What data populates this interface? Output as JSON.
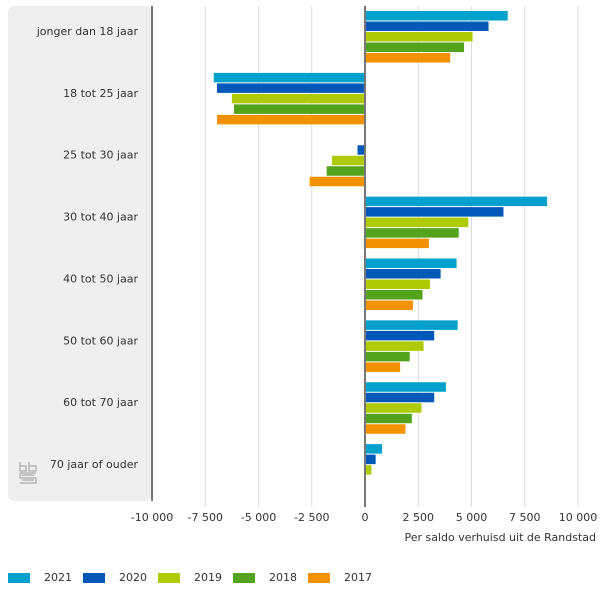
{
  "chart_data": {
    "type": "bar",
    "orientation": "horizontal",
    "title": "",
    "xlabel": "Per saldo verhuisd uit de Randstad",
    "ylabel": "",
    "xlim": [
      -10000,
      10000
    ],
    "xticks": [
      -10000,
      -7500,
      -5000,
      -2500,
      0,
      2500,
      5000,
      7500,
      10000
    ],
    "xtick_labels": [
      "-10 000",
      "-7 500",
      "-5 000",
      "-2 500",
      "0",
      "2 500",
      "5 000",
      "7 500",
      "10 000"
    ],
    "grid": true,
    "legend_position": "bottom",
    "categories": [
      "jonger dan 18 jaar",
      "18 tot 25 jaar",
      "25 tot 30 jaar",
      "30 tot 40 jaar",
      "40 tot 50 jaar",
      "50 tot 60 jaar",
      "60 tot 70 jaar",
      "70 jaar of ouder"
    ],
    "series": [
      {
        "name": "2021",
        "color": "#00a1cd",
        "values": [
          6700,
          -7100,
          0,
          8550,
          4300,
          4350,
          3800,
          800
        ]
      },
      {
        "name": "2020",
        "color": "#0058b8",
        "values": [
          5800,
          -6950,
          -350,
          6500,
          3550,
          3250,
          3250,
          500
        ]
      },
      {
        "name": "2019",
        "color": "#afcb05",
        "values": [
          5050,
          -6250,
          -1550,
          4850,
          3050,
          2750,
          2650,
          300
        ]
      },
      {
        "name": "2018",
        "color": "#53a31d",
        "values": [
          4650,
          -6150,
          -1800,
          4400,
          2700,
          2100,
          2200,
          0
        ]
      },
      {
        "name": "2017",
        "color": "#f39200",
        "values": [
          4000,
          -6950,
          -2600,
          3000,
          2250,
          1650,
          1900,
          0
        ]
      }
    ]
  },
  "logo": {
    "name": "cbs-logo-icon"
  },
  "colors": {
    "panel_bg": "#efefef",
    "gridline": "#dcdcdc",
    "axis": "#777777"
  }
}
